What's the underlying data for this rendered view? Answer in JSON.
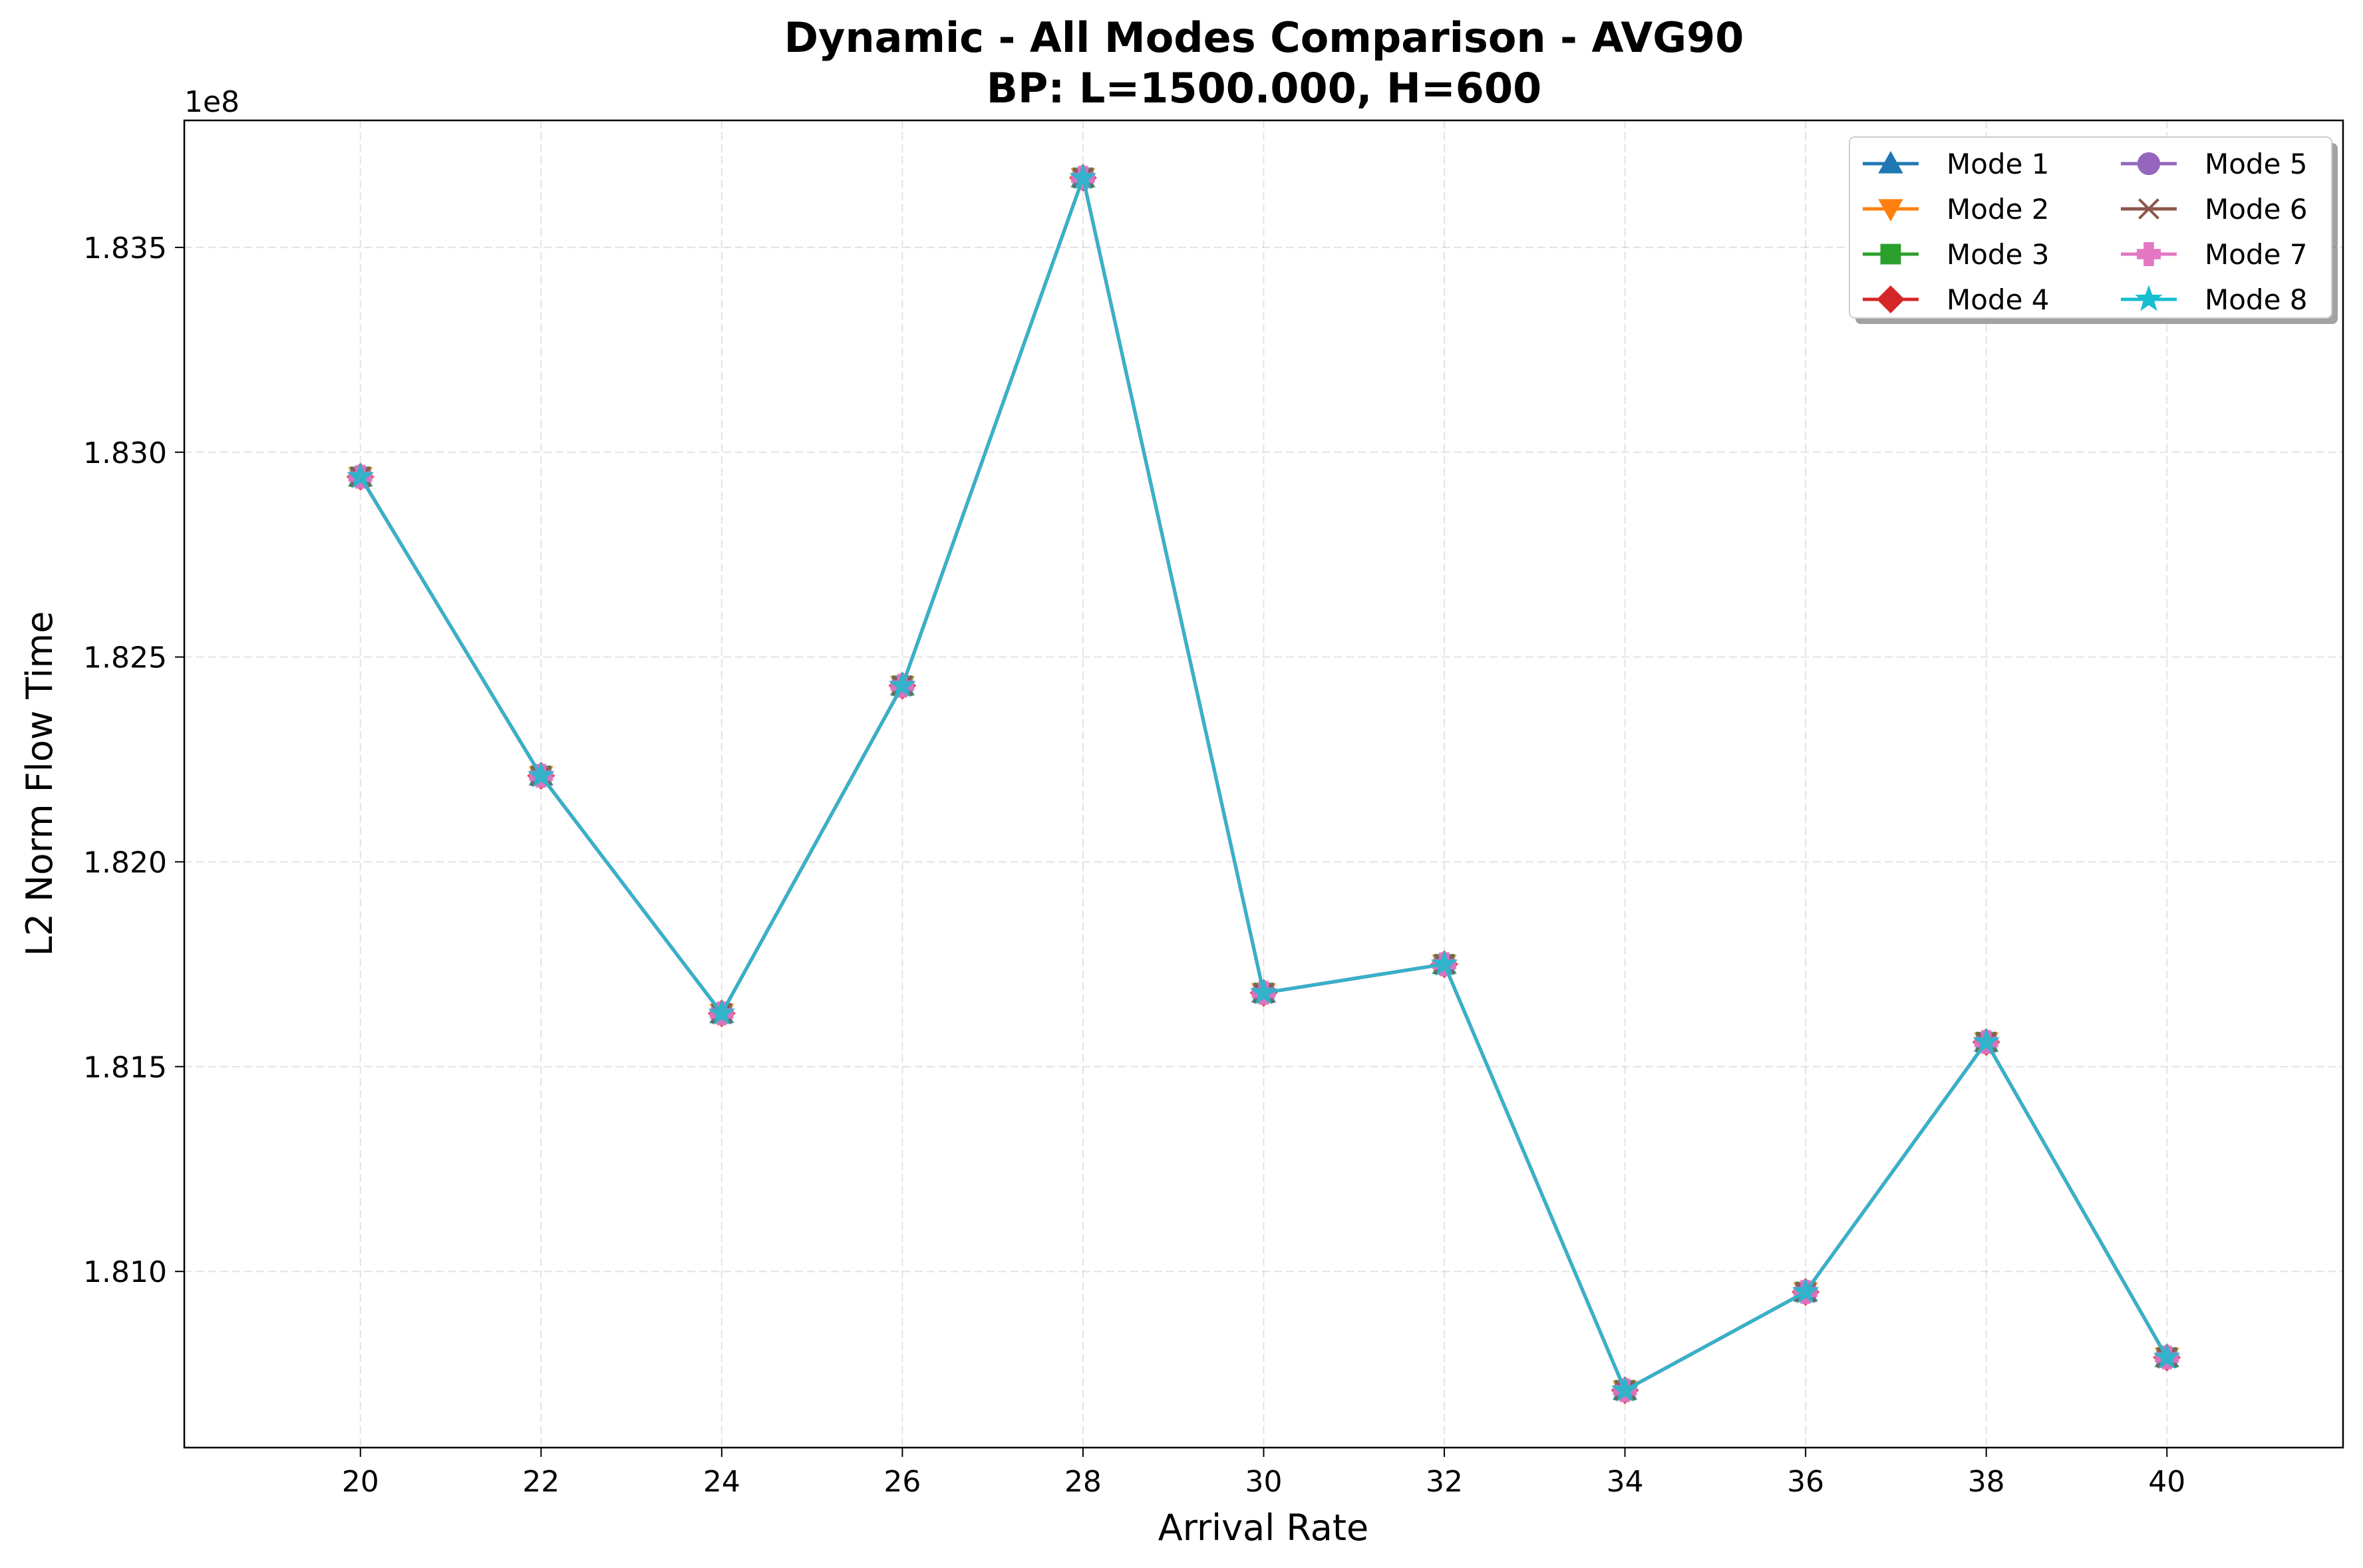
{
  "chart_data": {
    "type": "line",
    "title": "Dynamic - All Modes Comparison - AVG90",
    "subtitle": "BP: L=1500.000, H=600",
    "xlabel": "Arrival Rate",
    "ylabel": "L2 Norm Flow Time",
    "y_offset_label": "1e8",
    "x": [
      20,
      22,
      24,
      26,
      28,
      30,
      32,
      34,
      36,
      38,
      40
    ],
    "x_ticks": [
      "20",
      "22",
      "24",
      "26",
      "28",
      "30",
      "32",
      "34",
      "36",
      "38",
      "40"
    ],
    "y_ticks": [
      {
        "value": 1.81,
        "label": "1.810"
      },
      {
        "value": 1.815,
        "label": "1.815"
      },
      {
        "value": 1.82,
        "label": "1.820"
      },
      {
        "value": 1.825,
        "label": "1.825"
      },
      {
        "value": 1.83,
        "label": "1.830"
      },
      {
        "value": 1.835,
        "label": "1.835"
      }
    ],
    "xlim": [
      18.05,
      41.95
    ],
    "ylim": [
      1.8057,
      1.8381
    ],
    "grid": true,
    "legend_placement": "top-right",
    "legend_columns": 2,
    "series": [
      {
        "name": "Mode 1",
        "color": "#1f77b4",
        "marker": "triangle-up",
        "values": [
          1.8294,
          1.8221,
          1.8163,
          1.8243,
          1.8367,
          1.8168,
          1.8175,
          1.8071,
          1.8095,
          1.8156,
          1.8079
        ]
      },
      {
        "name": "Mode 2",
        "color": "#ff7f0e",
        "marker": "triangle-down",
        "values": [
          1.8294,
          1.8221,
          1.8163,
          1.8243,
          1.8367,
          1.8168,
          1.8175,
          1.8071,
          1.8095,
          1.8156,
          1.8079
        ]
      },
      {
        "name": "Mode 3",
        "color": "#2ca02c",
        "marker": "square",
        "values": [
          1.8294,
          1.8221,
          1.8163,
          1.8243,
          1.8367,
          1.8168,
          1.8175,
          1.8071,
          1.8095,
          1.8156,
          1.8079
        ]
      },
      {
        "name": "Mode 4",
        "color": "#d62728",
        "marker": "diamond",
        "values": [
          1.8294,
          1.8221,
          1.8163,
          1.8243,
          1.8367,
          1.8168,
          1.8175,
          1.8071,
          1.8095,
          1.8156,
          1.8079
        ]
      },
      {
        "name": "Mode 5",
        "color": "#9467bd",
        "marker": "circle",
        "values": [
          1.8294,
          1.8221,
          1.8163,
          1.8243,
          1.8367,
          1.8168,
          1.8175,
          1.8071,
          1.8095,
          1.8156,
          1.8079
        ]
      },
      {
        "name": "Mode 6",
        "color": "#8c564b",
        "marker": "x",
        "values": [
          1.8294,
          1.8221,
          1.8163,
          1.8243,
          1.8367,
          1.8168,
          1.8175,
          1.8071,
          1.8095,
          1.8156,
          1.8079
        ]
      },
      {
        "name": "Mode 7",
        "color": "#e377c2",
        "marker": "plus-filled",
        "values": [
          1.8294,
          1.8221,
          1.8163,
          1.8243,
          1.8367,
          1.8168,
          1.8175,
          1.8071,
          1.8095,
          1.8156,
          1.8079
        ]
      },
      {
        "name": "Mode 8",
        "color": "#17becf",
        "marker": "star",
        "values": [
          1.8294,
          1.8221,
          1.8163,
          1.8243,
          1.8367,
          1.8168,
          1.8175,
          1.8071,
          1.8095,
          1.8156,
          1.8079
        ]
      }
    ]
  }
}
